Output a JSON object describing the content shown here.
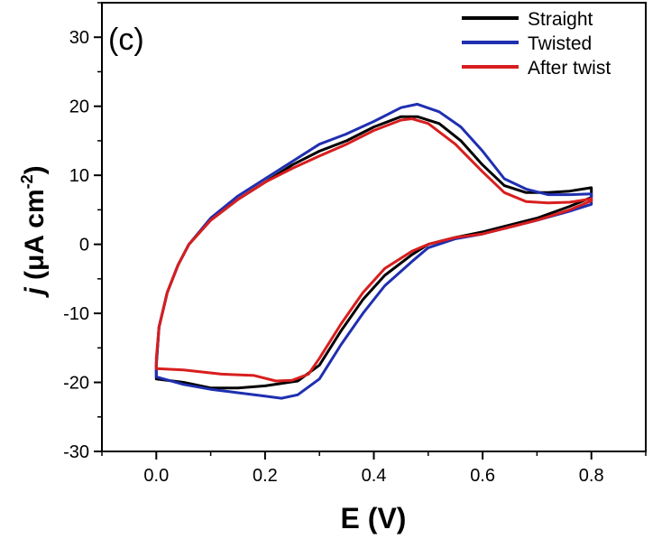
{
  "panel_label": "(c)",
  "chart_data": {
    "type": "line",
    "title": "",
    "xlabel": "E (V)",
    "ylabel_italic": "j",
    "ylabel_rest": " (μA cm",
    "ylabel_sup": "-2",
    "ylabel_close": ")",
    "xlim": [
      -0.1,
      0.9
    ],
    "ylim": [
      -30,
      35
    ],
    "xticks": [
      0.0,
      0.2,
      0.4,
      0.6,
      0.8
    ],
    "xtick_labels": [
      "0.0",
      "0.2",
      "0.4",
      "0.6",
      "0.8"
    ],
    "yticks": [
      -30,
      -20,
      -10,
      0,
      10,
      20,
      30
    ],
    "ytick_labels": [
      "-30",
      "-20",
      "-10",
      "0",
      "10",
      "20",
      "30"
    ],
    "grid": false,
    "legend_position": "top-right",
    "series": [
      {
        "name": "Straight",
        "color": "#000000",
        "points": [
          [
            0.0,
            -19.5
          ],
          [
            0.0,
            -17.5
          ],
          [
            0.005,
            -12
          ],
          [
            0.02,
            -7
          ],
          [
            0.04,
            -3
          ],
          [
            0.06,
            0
          ],
          [
            0.1,
            3.5
          ],
          [
            0.15,
            6.5
          ],
          [
            0.2,
            9
          ],
          [
            0.25,
            11.5
          ],
          [
            0.3,
            13.5
          ],
          [
            0.35,
            15
          ],
          [
            0.4,
            17
          ],
          [
            0.45,
            18.5
          ],
          [
            0.48,
            18.5
          ],
          [
            0.52,
            17.5
          ],
          [
            0.56,
            15
          ],
          [
            0.6,
            11.5
          ],
          [
            0.64,
            8.5
          ],
          [
            0.68,
            7.5
          ],
          [
            0.72,
            7.5
          ],
          [
            0.76,
            7.7
          ],
          [
            0.8,
            8.2
          ],
          [
            0.8,
            6.8
          ],
          [
            0.76,
            5.5
          ],
          [
            0.7,
            3.8
          ],
          [
            0.65,
            2.8
          ],
          [
            0.6,
            1.8
          ],
          [
            0.55,
            1
          ],
          [
            0.5,
            0
          ],
          [
            0.47,
            -1.5
          ],
          [
            0.42,
            -4.5
          ],
          [
            0.38,
            -8
          ],
          [
            0.34,
            -12.5
          ],
          [
            0.3,
            -17.5
          ],
          [
            0.26,
            -19.8
          ],
          [
            0.2,
            -20.5
          ],
          [
            0.15,
            -20.8
          ],
          [
            0.1,
            -20.8
          ],
          [
            0.05,
            -20
          ],
          [
            0.0,
            -19.5
          ]
        ]
      },
      {
        "name": "Twisted",
        "color": "#1f2fb0",
        "points": [
          [
            0.0,
            -19.2
          ],
          [
            0.0,
            -17.2
          ],
          [
            0.005,
            -12
          ],
          [
            0.02,
            -7
          ],
          [
            0.04,
            -3
          ],
          [
            0.06,
            0
          ],
          [
            0.1,
            3.8
          ],
          [
            0.15,
            7
          ],
          [
            0.2,
            9.5
          ],
          [
            0.25,
            12
          ],
          [
            0.3,
            14.5
          ],
          [
            0.35,
            16
          ],
          [
            0.4,
            17.8
          ],
          [
            0.45,
            19.8
          ],
          [
            0.48,
            20.3
          ],
          [
            0.52,
            19.2
          ],
          [
            0.56,
            17
          ],
          [
            0.6,
            13.5
          ],
          [
            0.64,
            9.5
          ],
          [
            0.68,
            8
          ],
          [
            0.72,
            7.2
          ],
          [
            0.76,
            7.2
          ],
          [
            0.8,
            7.3
          ],
          [
            0.8,
            5.8
          ],
          [
            0.76,
            4.8
          ],
          [
            0.7,
            3.5
          ],
          [
            0.65,
            2.5
          ],
          [
            0.6,
            1.5
          ],
          [
            0.55,
            0.8
          ],
          [
            0.5,
            -0.5
          ],
          [
            0.47,
            -2.5
          ],
          [
            0.42,
            -6
          ],
          [
            0.38,
            -10
          ],
          [
            0.34,
            -14.5
          ],
          [
            0.3,
            -19.5
          ],
          [
            0.26,
            -21.8
          ],
          [
            0.23,
            -22.3
          ],
          [
            0.2,
            -22
          ],
          [
            0.15,
            -21.5
          ],
          [
            0.1,
            -21
          ],
          [
            0.05,
            -20.3
          ],
          [
            0.0,
            -19.2
          ]
        ]
      },
      {
        "name": "After twist",
        "color": "#d81e1e",
        "points": [
          [
            0.0,
            -18
          ],
          [
            0.0,
            -16.5
          ],
          [
            0.005,
            -12
          ],
          [
            0.02,
            -7
          ],
          [
            0.04,
            -3
          ],
          [
            0.06,
            0
          ],
          [
            0.1,
            3.5
          ],
          [
            0.15,
            6.5
          ],
          [
            0.2,
            9
          ],
          [
            0.25,
            11
          ],
          [
            0.3,
            12.8
          ],
          [
            0.35,
            14.5
          ],
          [
            0.4,
            16.5
          ],
          [
            0.45,
            18
          ],
          [
            0.47,
            18.2
          ],
          [
            0.5,
            17.5
          ],
          [
            0.55,
            14.5
          ],
          [
            0.6,
            10.5
          ],
          [
            0.64,
            7.5
          ],
          [
            0.68,
            6.2
          ],
          [
            0.72,
            6.0
          ],
          [
            0.76,
            6.1
          ],
          [
            0.8,
            6.6
          ],
          [
            0.8,
            6.3
          ],
          [
            0.76,
            5
          ],
          [
            0.7,
            3.5
          ],
          [
            0.65,
            2.5
          ],
          [
            0.6,
            1.5
          ],
          [
            0.55,
            1
          ],
          [
            0.5,
            0
          ],
          [
            0.47,
            -1
          ],
          [
            0.42,
            -3.5
          ],
          [
            0.38,
            -7
          ],
          [
            0.34,
            -11.5
          ],
          [
            0.3,
            -16.5
          ],
          [
            0.28,
            -18.8
          ],
          [
            0.25,
            -19.7
          ],
          [
            0.22,
            -19.8
          ],
          [
            0.18,
            -19
          ],
          [
            0.12,
            -18.8
          ],
          [
            0.05,
            -18.2
          ],
          [
            0.0,
            -18
          ]
        ]
      }
    ]
  }
}
